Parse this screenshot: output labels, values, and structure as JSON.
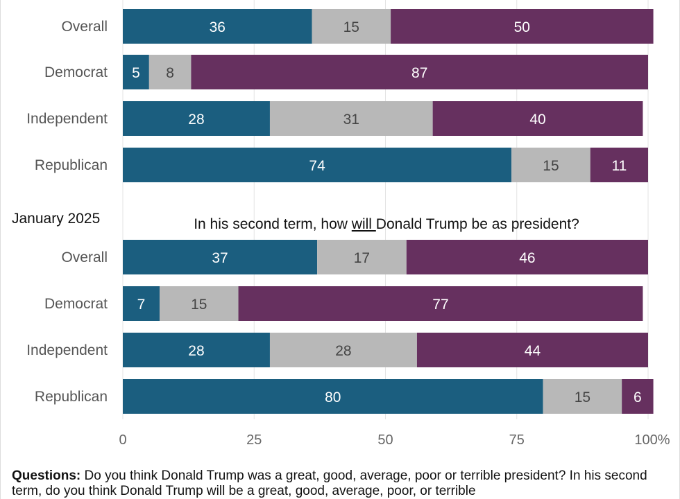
{
  "chart_data": {
    "type": "bar",
    "orientation": "horizontal",
    "stacked": true,
    "xlim": [
      0,
      100
    ],
    "x_ticks": [
      "0",
      "25",
      "50",
      "75",
      "100"
    ],
    "x_unit": "%",
    "colors": {
      "positive": "#1b5e7f",
      "middle": "#b8b8b8",
      "negative": "#66305f"
    },
    "panels": [
      {
        "section_label": "",
        "subtitle": "",
        "categories": [
          "Overall",
          "Democrat",
          "Independent",
          "Republican"
        ],
        "series": [
          {
            "values": [
              36,
              5,
              28,
              74
            ]
          },
          {
            "values": [
              15,
              8,
              31,
              15
            ]
          },
          {
            "values": [
              50,
              87,
              40,
              11
            ]
          }
        ]
      },
      {
        "section_label": "January 2025",
        "subtitle_parts": [
          "In his second term, how ",
          "will ",
          "Donald Trump be as president?"
        ],
        "categories": [
          "Overall",
          "Democrat",
          "Independent",
          "Republican"
        ],
        "series": [
          {
            "values": [
              37,
              7,
              28,
              80
            ]
          },
          {
            "values": [
              17,
              15,
              28,
              15
            ]
          },
          {
            "values": [
              46,
              77,
              44,
              6
            ]
          }
        ]
      }
    ]
  },
  "footer": {
    "questions_label": "Questions:",
    "questions_text": " Do you think Donald Trump was a great, good, average, poor or terrible president? In his second term, do you think Donald Trump will be a great, good, average, poor, or terrible"
  }
}
